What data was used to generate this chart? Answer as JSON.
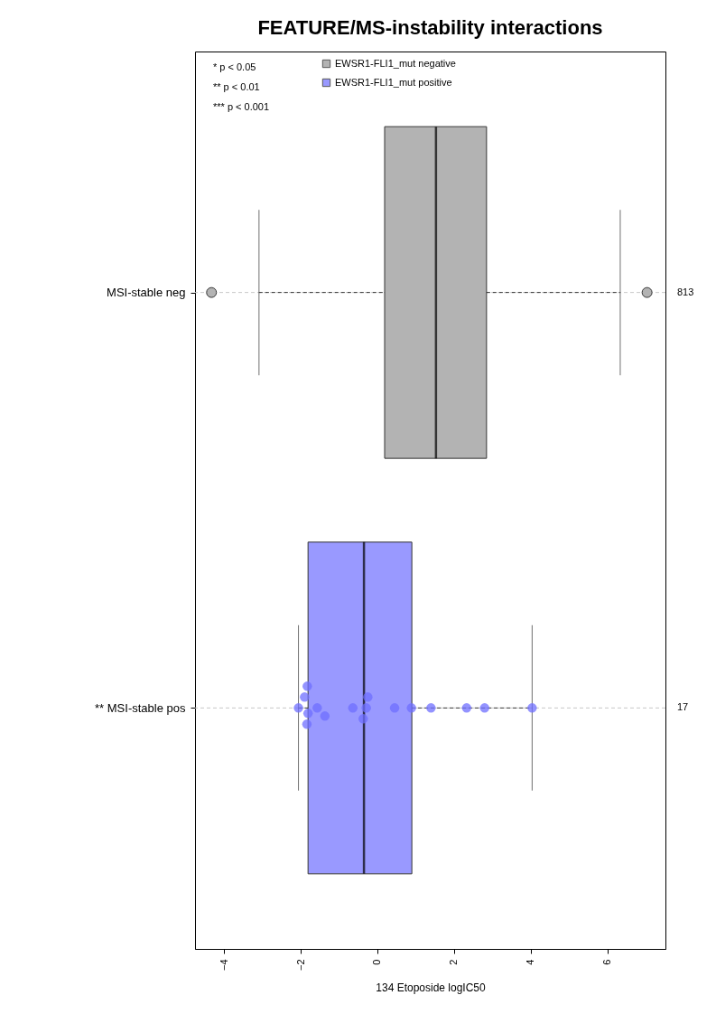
{
  "chart_data": {
    "type": "box",
    "orientation": "horizontal",
    "title": "FEATURE/MS-instability interactions",
    "xlabel": "134 Etoposide logIC50",
    "categories": [
      "MSI-stable neg",
      "** MSI-stable pos"
    ],
    "xlim": [
      -4.76,
      7.52
    ],
    "xticks": [
      -4,
      -2,
      0,
      2,
      4,
      6
    ],
    "grid": "y",
    "legend": "top left",
    "series": [
      {
        "name": "EWSR1-FLI1_mut negative",
        "color": "#b3b3b3",
        "boxes": [
          {
            "low": -3.09,
            "q1": 0.19,
            "median": 1.53,
            "q3": 2.85,
            "high": 6.34,
            "outliers": [
              -4.33,
              7.04
            ]
          },
          null
        ]
      },
      {
        "name": "EWSR1-FLI1_mut positive",
        "color": "#9999ff",
        "boxes": [
          null,
          {
            "low": -2.06,
            "q1": -1.81,
            "median": -0.35,
            "q3": 0.9,
            "high": 4.04
          }
        ]
      },
      {
        "type": "scatter",
        "color": "#6f6fff",
        "x": [
          "** MSI-stable pos",
          "** MSI-stable pos",
          "** MSI-stable pos",
          "** MSI-stable pos",
          "** MSI-stable pos",
          "** MSI-stable pos",
          "** MSI-stable pos",
          "** MSI-stable pos",
          "** MSI-stable pos",
          "** MSI-stable pos",
          "** MSI-stable pos",
          "** MSI-stable pos",
          "** MSI-stable pos",
          "** MSI-stable pos",
          "** MSI-stable pos",
          "** MSI-stable pos",
          "** MSI-stable pos"
        ],
        "values": [
          -2.06,
          -1.81,
          -1.9,
          -1.84,
          -1.83,
          -1.57,
          -1.37,
          -0.64,
          -0.29,
          -0.37,
          -0.25,
          0.45,
          0.89,
          1.4,
          2.33,
          2.8,
          4.04
        ]
      }
    ],
    "annotations": [
      "* p < 0.05",
      "** p < 0.01",
      "*** p < 0.001",
      "813",
      "17"
    ]
  }
}
